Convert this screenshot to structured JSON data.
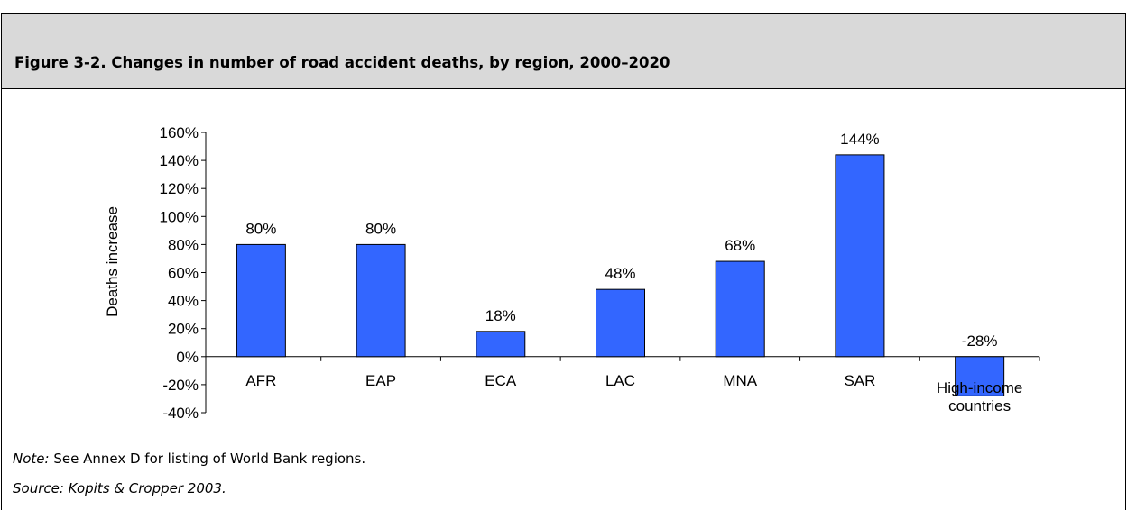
{
  "chart_data": {
    "type": "bar",
    "title": "Figure 3-2. Changes in number of road accident deaths, by region, 2000–2020",
    "ylabel": "Deaths increase",
    "categories": [
      "AFR",
      "EAP",
      "ECA",
      "LAC",
      "MNA",
      "SAR",
      "High-income countries"
    ],
    "values": [
      80,
      80,
      18,
      48,
      68,
      144,
      -28
    ],
    "value_labels": [
      "80%",
      "80%",
      "18%",
      "48%",
      "68%",
      "144%",
      "-28%"
    ],
    "color": "#3366ff",
    "ylim": [
      -40,
      160
    ],
    "yticks": [
      {
        "value": -40,
        "label": "-40%"
      },
      {
        "value": -20,
        "label": "-20%"
      },
      {
        "value": 0,
        "label": "0%"
      },
      {
        "value": 20,
        "label": "20%"
      },
      {
        "value": 40,
        "label": "40%"
      },
      {
        "value": 60,
        "label": "60%"
      },
      {
        "value": 80,
        "label": "80%"
      },
      {
        "value": 100,
        "label": "100%"
      },
      {
        "value": 120,
        "label": "120%"
      },
      {
        "value": 140,
        "label": "140%"
      },
      {
        "value": 160,
        "label": "160%"
      }
    ],
    "grid": false,
    "note": {
      "label": "Note:",
      "text": "See Annex D for listing of World Bank regions."
    },
    "source": "Source: Kopits & Cropper 2003."
  }
}
